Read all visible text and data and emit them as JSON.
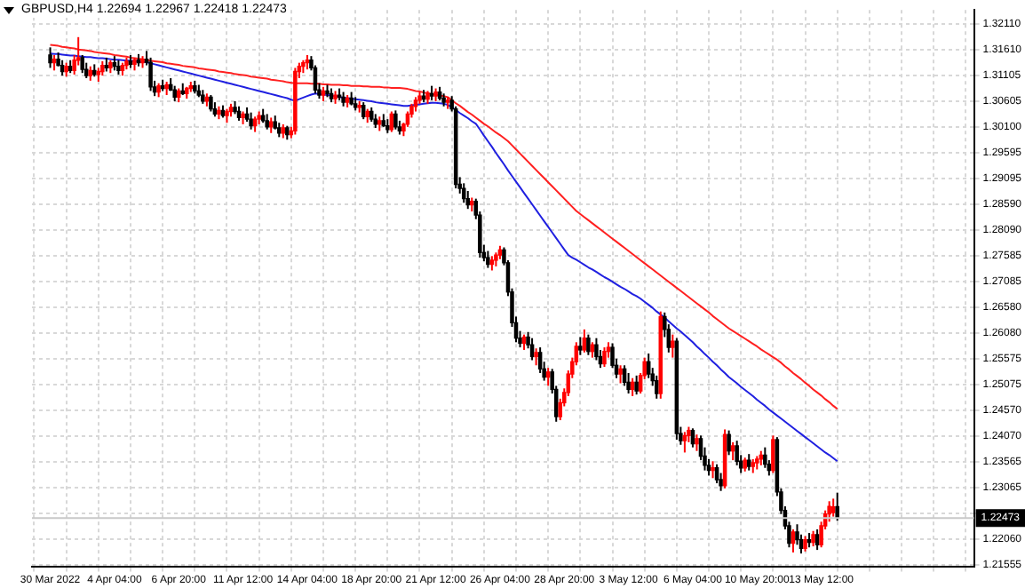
{
  "chart_data": {
    "type": "candlestick",
    "title": "GBPUSD,H4  1.22694 1.22967 1.22418 1.22473",
    "categories": [
      "30 Mar 2022",
      null,
      null,
      null,
      null,
      null,
      null,
      null,
      null,
      null,
      null,
      null,
      null,
      null,
      null,
      null,
      "4 Apr 04:00",
      null,
      null,
      null,
      null,
      null,
      null,
      null,
      null,
      null,
      null,
      null,
      null,
      null,
      null,
      null,
      "6 Apr 20:00",
      null,
      null,
      null,
      null,
      null,
      null,
      null,
      null,
      null,
      null,
      null,
      null,
      null,
      null,
      null,
      "11 Apr 12:00",
      null,
      null,
      null,
      null,
      null,
      null,
      null,
      null,
      null,
      null,
      null,
      null,
      null,
      null,
      null,
      "14 Apr 04:00",
      null,
      null,
      null,
      null,
      null,
      null,
      null,
      null,
      null,
      null,
      null,
      null,
      null,
      null,
      null,
      "18 Apr 20:00",
      null,
      null,
      null,
      null,
      null,
      null,
      null,
      null,
      null,
      null,
      null,
      null,
      null,
      null,
      null,
      "21 Apr 12:00",
      null,
      null,
      null,
      null,
      null,
      null,
      null,
      null,
      null,
      null,
      null,
      null,
      null,
      null,
      null,
      "26 Apr 04:00",
      null,
      null,
      null,
      null,
      null,
      null,
      null,
      null,
      null,
      null,
      null,
      null,
      null,
      null,
      null,
      "28 Apr 20:00",
      null,
      null,
      null,
      null,
      null,
      null,
      null,
      null,
      null,
      null,
      null,
      null,
      null,
      null,
      null,
      "3 May 12:00",
      null,
      null,
      null,
      null,
      null,
      null,
      null,
      null,
      null,
      null,
      null,
      null,
      null,
      null,
      null,
      "6 May 04:00",
      null,
      null,
      null,
      null,
      null,
      null,
      null,
      null,
      null,
      null,
      null,
      null,
      null,
      null,
      null,
      "10 May 20:00",
      null,
      null,
      null,
      null,
      null,
      null,
      null,
      null,
      null,
      null,
      null,
      null,
      null,
      null,
      null,
      "13 May 12:00",
      null,
      null,
      null,
      null
    ],
    "ohlc": [
      [
        1.315,
        1.3165,
        1.3125,
        1.3135
      ],
      [
        1.3135,
        1.315,
        1.312,
        1.3142
      ],
      [
        1.3142,
        1.3155,
        1.3128,
        1.313
      ],
      [
        1.313,
        1.314,
        1.311,
        1.3118
      ],
      [
        1.3118,
        1.3135,
        1.3108,
        1.3128
      ],
      [
        1.3128,
        1.314,
        1.3115,
        1.312
      ],
      [
        1.312,
        1.315,
        1.3112,
        1.314
      ],
      [
        1.314,
        1.3185,
        1.313,
        1.3145
      ],
      [
        1.3145,
        1.315,
        1.3115,
        1.3122
      ],
      [
        1.3122,
        1.3135,
        1.3105,
        1.311
      ],
      [
        1.311,
        1.3128,
        1.31,
        1.312
      ],
      [
        1.312,
        1.3132,
        1.3108,
        1.3112
      ],
      [
        1.3112,
        1.3125,
        1.3098,
        1.3118
      ],
      [
        1.3118,
        1.3138,
        1.311,
        1.313
      ],
      [
        1.313,
        1.3145,
        1.3118,
        1.3125
      ],
      [
        1.3125,
        1.314,
        1.3115,
        1.3135
      ],
      [
        1.3135,
        1.3148,
        1.312,
        1.3128
      ],
      [
        1.3128,
        1.314,
        1.3112,
        1.312
      ],
      [
        1.312,
        1.3135,
        1.311,
        1.313
      ],
      [
        1.313,
        1.3145,
        1.3122,
        1.3138
      ],
      [
        1.3138,
        1.315,
        1.3125,
        1.3132
      ],
      [
        1.3132,
        1.3145,
        1.312,
        1.314
      ],
      [
        1.314,
        1.3152,
        1.3128,
        1.3135
      ],
      [
        1.3135,
        1.3148,
        1.3125,
        1.3142
      ],
      [
        1.3142,
        1.3158,
        1.313,
        1.3136
      ],
      [
        1.3136,
        1.3145,
        1.308,
        1.3088
      ],
      [
        1.3088,
        1.31,
        1.307,
        1.3078
      ],
      [
        1.3078,
        1.3095,
        1.3068,
        1.309
      ],
      [
        1.309,
        1.3102,
        1.308,
        1.3085
      ],
      [
        1.3085,
        1.3098,
        1.3072,
        1.3092
      ],
      [
        1.3092,
        1.3105,
        1.308,
        1.3082
      ],
      [
        1.3082,
        1.309,
        1.306,
        1.3068
      ],
      [
        1.3068,
        1.3085,
        1.3058,
        1.308
      ],
      [
        1.308,
        1.3095,
        1.3072,
        1.3075
      ],
      [
        1.3075,
        1.3088,
        1.3065,
        1.3085
      ],
      [
        1.3085,
        1.3098,
        1.3078,
        1.309
      ],
      [
        1.309,
        1.31,
        1.3075,
        1.308
      ],
      [
        1.308,
        1.3092,
        1.3068,
        1.3072
      ],
      [
        1.3072,
        1.3082,
        1.3055,
        1.306
      ],
      [
        1.306,
        1.3075,
        1.305,
        1.3068
      ],
      [
        1.3068,
        1.3072,
        1.304,
        1.3045
      ],
      [
        1.3045,
        1.3058,
        1.303,
        1.3035
      ],
      [
        1.3035,
        1.305,
        1.3025,
        1.3042
      ],
      [
        1.3042,
        1.3052,
        1.3028,
        1.3032
      ],
      [
        1.3032,
        1.3045,
        1.3018,
        1.304
      ],
      [
        1.304,
        1.3055,
        1.303,
        1.3048
      ],
      [
        1.3048,
        1.306,
        1.3035,
        1.304
      ],
      [
        1.304,
        1.305,
        1.3022,
        1.3028
      ],
      [
        1.3028,
        1.304,
        1.3015,
        1.3035
      ],
      [
        1.3035,
        1.3048,
        1.302,
        1.3025
      ],
      [
        1.3025,
        1.3038,
        1.3005,
        1.3012
      ],
      [
        1.3012,
        1.303,
        1.3,
        1.3025
      ],
      [
        1.3025,
        1.304,
        1.3015,
        1.3032
      ],
      [
        1.3032,
        1.3045,
        1.3018,
        1.3022
      ],
      [
        1.3022,
        1.3035,
        1.3005,
        1.301
      ],
      [
        1.301,
        1.3028,
        1.2998,
        1.302
      ],
      [
        1.302,
        1.3032,
        1.3005,
        1.3008
      ],
      [
        1.3008,
        1.3018,
        1.299,
        1.2998
      ],
      [
        1.2998,
        1.3015,
        1.2988,
        1.3008
      ],
      [
        1.3008,
        1.3012,
        1.2985,
        1.2995
      ],
      [
        1.2995,
        1.301,
        1.2988,
        1.3002
      ],
      [
        1.3002,
        1.3125,
        1.2995,
        1.3118
      ],
      [
        1.3118,
        1.3135,
        1.3105,
        1.3128
      ],
      [
        1.3128,
        1.314,
        1.3115,
        1.3135
      ],
      [
        1.3135,
        1.315,
        1.3122,
        1.314
      ],
      [
        1.314,
        1.3148,
        1.312,
        1.3125
      ],
      [
        1.3125,
        1.313,
        1.3075,
        1.3082
      ],
      [
        1.3082,
        1.3095,
        1.3065,
        1.3072
      ],
      [
        1.3072,
        1.3088,
        1.306,
        1.308
      ],
      [
        1.308,
        1.3092,
        1.3068,
        1.3075
      ],
      [
        1.3075,
        1.3085,
        1.3058,
        1.3065
      ],
      [
        1.3065,
        1.308,
        1.3055,
        1.3072
      ],
      [
        1.3072,
        1.3085,
        1.3062,
        1.3068
      ],
      [
        1.3068,
        1.3078,
        1.305,
        1.3058
      ],
      [
        1.3058,
        1.3072,
        1.3048,
        1.3066
      ],
      [
        1.3066,
        1.3078,
        1.3052,
        1.3055
      ],
      [
        1.3055,
        1.3068,
        1.3042,
        1.3048
      ],
      [
        1.3048,
        1.306,
        1.3038,
        1.3052
      ],
      [
        1.3052,
        1.3058,
        1.3025,
        1.303
      ],
      [
        1.303,
        1.3045,
        1.3018,
        1.304
      ],
      [
        1.304,
        1.3048,
        1.302,
        1.3025
      ],
      [
        1.3025,
        1.3035,
        1.3008,
        1.3015
      ],
      [
        1.3015,
        1.303,
        1.3002,
        1.3022
      ],
      [
        1.3022,
        1.3035,
        1.301,
        1.3012
      ],
      [
        1.3012,
        1.3025,
        1.2998,
        1.3005
      ],
      [
        1.3005,
        1.304,
        1.3,
        1.3035
      ],
      [
        1.3035,
        1.3042,
        1.3005,
        1.301
      ],
      [
        1.301,
        1.3022,
        1.2995,
        1.3002
      ],
      [
        1.3002,
        1.3018,
        1.2992,
        1.3015
      ],
      [
        1.3015,
        1.304,
        1.301,
        1.3035
      ],
      [
        1.3035,
        1.3055,
        1.3028,
        1.305
      ],
      [
        1.305,
        1.3068,
        1.304,
        1.3062
      ],
      [
        1.3062,
        1.3078,
        1.3055,
        1.307
      ],
      [
        1.307,
        1.3082,
        1.3058,
        1.3064
      ],
      [
        1.3064,
        1.308,
        1.3055,
        1.3075
      ],
      [
        1.3075,
        1.309,
        1.3062,
        1.307
      ],
      [
        1.307,
        1.3085,
        1.306,
        1.3078
      ],
      [
        1.3078,
        1.3088,
        1.3062,
        1.3066
      ],
      [
        1.3066,
        1.3075,
        1.305,
        1.3058
      ],
      [
        1.3058,
        1.3068,
        1.3045,
        1.3062
      ],
      [
        1.3062,
        1.307,
        1.304,
        1.3045
      ],
      [
        1.3045,
        1.305,
        1.289,
        1.2898
      ],
      [
        1.2898,
        1.2912,
        1.288,
        1.289
      ],
      [
        1.289,
        1.29,
        1.2862,
        1.287
      ],
      [
        1.287,
        1.2885,
        1.285,
        1.2858
      ],
      [
        1.2858,
        1.2872,
        1.2845,
        1.2865
      ],
      [
        1.2865,
        1.287,
        1.283,
        1.2838
      ],
      [
        1.2838,
        1.2845,
        1.2755,
        1.2765
      ],
      [
        1.2765,
        1.278,
        1.2748,
        1.2755
      ],
      [
        1.2755,
        1.2768,
        1.2735,
        1.2742
      ],
      [
        1.2742,
        1.2758,
        1.273,
        1.275
      ],
      [
        1.275,
        1.2765,
        1.2738,
        1.276
      ],
      [
        1.276,
        1.2778,
        1.2752,
        1.277
      ],
      [
        1.277,
        1.2775,
        1.274,
        1.2745
      ],
      [
        1.2745,
        1.275,
        1.268,
        1.2688
      ],
      [
        1.2688,
        1.2695,
        1.262,
        1.2628
      ],
      [
        1.2628,
        1.264,
        1.259,
        1.2598
      ],
      [
        1.2598,
        1.2612,
        1.258,
        1.2588
      ],
      [
        1.2588,
        1.2605,
        1.2575,
        1.26
      ],
      [
        1.26,
        1.261,
        1.2578,
        1.2585
      ],
      [
        1.2585,
        1.2598,
        1.2555,
        1.2562
      ],
      [
        1.2562,
        1.2578,
        1.2545,
        1.257
      ],
      [
        1.257,
        1.258,
        1.253,
        1.2538
      ],
      [
        1.2538,
        1.2552,
        1.2515,
        1.2522
      ],
      [
        1.2522,
        1.254,
        1.2505,
        1.2532
      ],
      [
        1.2532,
        1.2538,
        1.249,
        1.2498
      ],
      [
        1.2498,
        1.2505,
        1.2435,
        1.2445
      ],
      [
        1.2445,
        1.248,
        1.2438,
        1.2472
      ],
      [
        1.2472,
        1.25,
        1.2465,
        1.2492
      ],
      [
        1.2492,
        1.2535,
        1.2485,
        1.2528
      ],
      [
        1.2528,
        1.256,
        1.252,
        1.2552
      ],
      [
        1.2552,
        1.259,
        1.2545,
        1.2582
      ],
      [
        1.2582,
        1.26,
        1.2565,
        1.2575
      ],
      [
        1.2575,
        1.2615,
        1.257,
        1.2598
      ],
      [
        1.2598,
        1.2605,
        1.2565,
        1.2572
      ],
      [
        1.2572,
        1.259,
        1.256,
        1.2585
      ],
      [
        1.2585,
        1.2598,
        1.2555,
        1.2562
      ],
      [
        1.2562,
        1.2575,
        1.254,
        1.2548
      ],
      [
        1.2548,
        1.258,
        1.2542,
        1.2572
      ],
      [
        1.2572,
        1.259,
        1.256,
        1.258
      ],
      [
        1.258,
        1.2588,
        1.254,
        1.2545
      ],
      [
        1.2545,
        1.2558,
        1.252,
        1.2528
      ],
      [
        1.2528,
        1.2545,
        1.251,
        1.2538
      ],
      [
        1.2538,
        1.2545,
        1.2505,
        1.2512
      ],
      [
        1.2512,
        1.253,
        1.249,
        1.2498
      ],
      [
        1.2498,
        1.252,
        1.2485,
        1.2512
      ],
      [
        1.2512,
        1.2525,
        1.2488,
        1.2495
      ],
      [
        1.2495,
        1.253,
        1.249,
        1.2525
      ],
      [
        1.2525,
        1.256,
        1.2518,
        1.2552
      ],
      [
        1.2552,
        1.2568,
        1.252,
        1.2528
      ],
      [
        1.2528,
        1.254,
        1.2505,
        1.2515
      ],
      [
        1.2515,
        1.2525,
        1.248,
        1.249
      ],
      [
        1.249,
        1.265,
        1.248,
        1.264
      ],
      [
        1.264,
        1.2648,
        1.26,
        1.2615
      ],
      [
        1.2615,
        1.2625,
        1.257,
        1.258
      ],
      [
        1.258,
        1.2605,
        1.256,
        1.2592
      ],
      [
        1.2592,
        1.2598,
        1.24,
        1.2412
      ],
      [
        1.2412,
        1.2425,
        1.239,
        1.2398
      ],
      [
        1.2398,
        1.2415,
        1.2375,
        1.2408
      ],
      [
        1.2408,
        1.2425,
        1.2395,
        1.2418
      ],
      [
        1.2418,
        1.2422,
        1.2385,
        1.2392
      ],
      [
        1.2392,
        1.241,
        1.2378,
        1.2402
      ],
      [
        1.2402,
        1.2408,
        1.236,
        1.2368
      ],
      [
        1.2368,
        1.2385,
        1.234,
        1.235
      ],
      [
        1.235,
        1.2362,
        1.233,
        1.234
      ],
      [
        1.234,
        1.2358,
        1.2325,
        1.2345
      ],
      [
        1.2345,
        1.2352,
        1.2315,
        1.2322
      ],
      [
        1.2322,
        1.2335,
        1.23,
        1.231
      ],
      [
        1.231,
        1.242,
        1.2305,
        1.241
      ],
      [
        1.241,
        1.2418,
        1.237,
        1.2378
      ],
      [
        1.2378,
        1.2395,
        1.236,
        1.2388
      ],
      [
        1.2388,
        1.2398,
        1.235,
        1.2358
      ],
      [
        1.2358,
        1.237,
        1.2335,
        1.2345
      ],
      [
        1.2345,
        1.2365,
        1.2338,
        1.236
      ],
      [
        1.236,
        1.2372,
        1.234,
        1.2348
      ],
      [
        1.2348,
        1.2362,
        1.2335,
        1.2355
      ],
      [
        1.2355,
        1.2368,
        1.2342,
        1.2362
      ],
      [
        1.2362,
        1.2378,
        1.235,
        1.237
      ],
      [
        1.237,
        1.2385,
        1.2345,
        1.2352
      ],
      [
        1.2352,
        1.236,
        1.233,
        1.234
      ],
      [
        1.234,
        1.2408,
        1.2335,
        1.24
      ],
      [
        1.24,
        1.2405,
        1.229,
        1.2298
      ],
      [
        1.2298,
        1.2305,
        1.2255,
        1.2262
      ],
      [
        1.2262,
        1.227,
        1.2225,
        1.2232
      ],
      [
        1.2232,
        1.224,
        1.219,
        1.2198
      ],
      [
        1.2198,
        1.2225,
        1.218,
        1.222
      ],
      [
        1.222,
        1.2235,
        1.2195,
        1.2205
      ],
      [
        1.2205,
        1.2215,
        1.2178,
        1.2188
      ],
      [
        1.2188,
        1.2212,
        1.2182,
        1.2205
      ],
      [
        1.2205,
        1.2218,
        1.219,
        1.22
      ],
      [
        1.22,
        1.2222,
        1.2192,
        1.2215
      ],
      [
        1.2215,
        1.2225,
        1.2185,
        1.2195
      ],
      [
        1.2195,
        1.224,
        1.219,
        1.2232
      ],
      [
        1.2232,
        1.2262,
        1.2225,
        1.2255
      ],
      [
        1.2255,
        1.228,
        1.224,
        1.227
      ],
      [
        1.2258,
        1.2285,
        1.225,
        1.2269
      ],
      [
        1.22694,
        1.22967,
        1.22418,
        1.22473
      ]
    ],
    "series": [
      {
        "type": "line",
        "color": "#ff2020",
        "values": [
          1.317,
          1.3169,
          1.3168,
          1.3166,
          1.3165,
          1.3164,
          1.3163,
          1.3161,
          1.316,
          1.3159,
          1.3158,
          1.3156,
          1.3155,
          1.3154,
          1.3153,
          1.3152,
          1.315,
          1.3149,
          1.3148,
          1.3147,
          1.3145,
          1.3144,
          1.3143,
          1.3142,
          1.314,
          1.3139,
          1.3138,
          1.3137,
          1.3136,
          1.3134,
          1.3133,
          1.3132,
          1.3131,
          1.3129,
          1.3128,
          1.3127,
          1.3126,
          1.3124,
          1.3123,
          1.3122,
          1.3121,
          1.312,
          1.3118,
          1.3117,
          1.3116,
          1.3115,
          1.3113,
          1.3112,
          1.3111,
          1.311,
          1.3108,
          1.3107,
          1.3106,
          1.3105,
          1.3104,
          1.3102,
          1.3101,
          1.31,
          1.3099,
          1.3097,
          1.3096,
          1.3095,
          1.3095,
          1.3095,
          1.3095,
          1.3094,
          1.3094,
          1.3094,
          1.3093,
          1.3093,
          1.3092,
          1.3092,
          1.3092,
          1.3091,
          1.3091,
          1.309,
          1.309,
          1.309,
          1.3089,
          1.3089,
          1.3088,
          1.3088,
          1.3088,
          1.3087,
          1.3087,
          1.3086,
          1.3086,
          1.3086,
          1.3085,
          1.3084,
          1.3082,
          1.308,
          1.3079,
          1.3077,
          1.3076,
          1.3074,
          1.3073,
          1.3071,
          1.307,
          1.3068,
          1.3062,
          1.3056,
          1.3051,
          1.3045,
          1.3039,
          1.3034,
          1.3028,
          1.3022,
          1.3016,
          1.3011,
          1.3005,
          1.2999,
          1.2994,
          1.2988,
          1.2982,
          1.2974,
          1.2966,
          1.2958,
          1.295,
          1.2942,
          1.2934,
          1.2926,
          1.2918,
          1.291,
          1.2902,
          1.2894,
          1.2886,
          1.2878,
          1.287,
          1.2862,
          1.2854,
          1.2846,
          1.284,
          1.2834,
          1.2828,
          1.2822,
          1.2816,
          1.281,
          1.2804,
          1.2798,
          1.2792,
          1.2786,
          1.278,
          1.2774,
          1.2768,
          1.2762,
          1.2756,
          1.275,
          1.2744,
          1.2738,
          1.2732,
          1.2726,
          1.272,
          1.2714,
          1.2708,
          1.2702,
          1.2696,
          1.269,
          1.2684,
          1.2678,
          1.2672,
          1.2666,
          1.266,
          1.2654,
          1.2648,
          1.2641,
          1.2635,
          1.2629,
          1.2623,
          1.2617,
          1.2612,
          1.2607,
          1.2602,
          1.2597,
          1.2592,
          1.2587,
          1.2582,
          1.2576,
          1.2571,
          1.2566,
          1.2561,
          1.2556,
          1.255,
          1.2543,
          1.2537,
          1.253,
          1.2524,
          1.2518,
          1.2511,
          1.2505,
          1.2498,
          1.2492,
          1.2486,
          1.2479,
          1.2473,
          1.2466,
          1.246
        ]
      },
      {
        "type": "line",
        "color": "#2020e0",
        "values": [
          1.3153,
          1.3152,
          1.3152,
          1.3151,
          1.315,
          1.3149,
          1.3149,
          1.3148,
          1.3147,
          1.3146,
          1.3146,
          1.3145,
          1.3144,
          1.3144,
          1.3143,
          1.3142,
          1.3141,
          1.3141,
          1.314,
          1.3139,
          1.3139,
          1.3138,
          1.3137,
          1.3136,
          1.3136,
          1.3134,
          1.3132,
          1.313,
          1.3128,
          1.3126,
          1.3124,
          1.3122,
          1.312,
          1.3118,
          1.3116,
          1.3114,
          1.3112,
          1.311,
          1.3108,
          1.3106,
          1.3104,
          1.3102,
          1.31,
          1.3098,
          1.3096,
          1.3094,
          1.3092,
          1.309,
          1.3088,
          1.3086,
          1.3084,
          1.3082,
          1.308,
          1.3078,
          1.3076,
          1.3074,
          1.3072,
          1.307,
          1.3068,
          1.3066,
          1.3063,
          1.3061,
          1.3064,
          1.3067,
          1.307,
          1.3073,
          1.3075,
          1.3074,
          1.3073,
          1.3072,
          1.3071,
          1.307,
          1.3068,
          1.3067,
          1.3066,
          1.3065,
          1.3064,
          1.3063,
          1.3062,
          1.3061,
          1.306,
          1.3058,
          1.3057,
          1.3056,
          1.3055,
          1.3054,
          1.3053,
          1.3052,
          1.3051,
          1.3051,
          1.3052,
          1.3053,
          1.3054,
          1.3055,
          1.3056,
          1.3057,
          1.3057,
          1.3056,
          1.3055,
          1.3053,
          1.3048,
          1.3043,
          1.3037,
          1.3032,
          1.3027,
          1.3021,
          1.3016,
          1.3005,
          1.2993,
          1.2982,
          1.2971,
          1.2959,
          1.2948,
          1.2937,
          1.2925,
          1.2914,
          1.2903,
          1.2892,
          1.2881,
          1.287,
          1.2859,
          1.2848,
          1.2837,
          1.2826,
          1.2815,
          1.2804,
          1.2793,
          1.2782,
          1.2771,
          1.276,
          1.2755,
          1.2751,
          1.2746,
          1.2741,
          1.2736,
          1.2732,
          1.2727,
          1.2722,
          1.2717,
          1.2713,
          1.2708,
          1.2703,
          1.2698,
          1.2694,
          1.2689,
          1.2684,
          1.268,
          1.2675,
          1.2669,
          1.2663,
          1.2657,
          1.265,
          1.2644,
          1.2638,
          1.2631,
          1.2624,
          1.2617,
          1.2611,
          1.2604,
          1.2597,
          1.259,
          1.2582,
          1.2575,
          1.2567,
          1.256,
          1.2552,
          1.2545,
          1.2537,
          1.253,
          1.2522,
          1.2516,
          1.251,
          1.2503,
          1.2497,
          1.2491,
          1.2485,
          1.2478,
          1.2472,
          1.2466,
          1.2459,
          1.2453,
          1.2447,
          1.2441,
          1.2435,
          1.2429,
          1.2423,
          1.2417,
          1.2411,
          1.2405,
          1.2399,
          1.2393,
          1.2387,
          1.2381,
          1.2375,
          1.237,
          1.2364,
          1.2358
        ]
      }
    ],
    "ylim": [
      1.2153,
      1.3238
    ],
    "yticks": [
      {
        "value": 1.3211,
        "label": "1.32110"
      },
      {
        "value": 1.3161,
        "label": "1.31610"
      },
      {
        "value": 1.31105,
        "label": "1.31105"
      },
      {
        "value": 1.30605,
        "label": "1.30605"
      },
      {
        "value": 1.301,
        "label": "1.30100"
      },
      {
        "value": 1.29595,
        "label": "1.29595"
      },
      {
        "value": 1.29095,
        "label": "1.29095"
      },
      {
        "value": 1.2859,
        "label": "1.28590"
      },
      {
        "value": 1.2809,
        "label": "1.28090"
      },
      {
        "value": 1.27585,
        "label": "1.27585"
      },
      {
        "value": 1.27085,
        "label": "1.27085"
      },
      {
        "value": 1.2658,
        "label": "1.26580"
      },
      {
        "value": 1.2608,
        "label": "1.26080"
      },
      {
        "value": 1.25575,
        "label": "1.25575"
      },
      {
        "value": 1.25075,
        "label": "1.25075"
      },
      {
        "value": 1.2457,
        "label": "1.24570"
      },
      {
        "value": 1.2407,
        "label": "1.24070"
      },
      {
        "value": 1.23565,
        "label": "1.23565"
      },
      {
        "value": 1.23065,
        "label": "1.23065"
      },
      {
        "value": 1.2256,
        "label": null
      },
      {
        "value": 1.2206,
        "label": "1.22060"
      },
      {
        "value": 1.21555,
        "label": "1.21555"
      }
    ],
    "ref_lines": [
      {
        "axis": "y",
        "value": 1.22473,
        "label": "1.22473",
        "color": "#c8c8c8"
      }
    ],
    "grid": true,
    "legend": false
  }
}
